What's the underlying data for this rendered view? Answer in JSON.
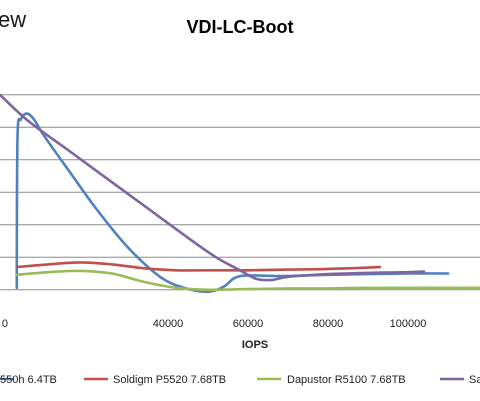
{
  "logo": {
    "fragment": "ew"
  },
  "chart_data": {
    "type": "line",
    "title": "VDI-LC-Boot",
    "xlabel": "IOPS",
    "ylabel": "",
    "xlim": [
      -2000,
      118000
    ],
    "ylim": [
      0,
      40
    ],
    "yticks": [
      2.5,
      7.5,
      12.5,
      17.5,
      22.5,
      27.5,
      32.5
    ],
    "grid": true,
    "legend_position": "bottom",
    "x_tick_labels": [
      {
        "value": 0,
        "label": "0"
      },
      {
        "value": 40000,
        "label": "40000"
      },
      {
        "value": 60000,
        "label": "60000"
      },
      {
        "value": 80000,
        "label": "80000"
      },
      {
        "value": 100000,
        "label": "100000"
      }
    ],
    "series": [
      {
        "name": "550h 6.4TB",
        "color": "#4f81bd",
        "points": [
          [
            2200,
            2.8
          ],
          [
            2200,
            7.0
          ],
          [
            2400,
            26.5
          ],
          [
            3200,
            28.7
          ],
          [
            4700,
            29.6
          ],
          [
            6500,
            28.7
          ],
          [
            9000,
            26.2
          ],
          [
            15000,
            21.0
          ],
          [
            22000,
            15.0
          ],
          [
            30000,
            9.0
          ],
          [
            38000,
            4.5
          ],
          [
            44000,
            2.8
          ],
          [
            50000,
            2.2
          ],
          [
            54000,
            3.0
          ],
          [
            58000,
            4.6
          ],
          [
            68000,
            4.6
          ],
          [
            80000,
            4.8
          ],
          [
            90000,
            4.9
          ],
          [
            100000,
            5.0
          ],
          [
            110000,
            5.0
          ]
        ]
      },
      {
        "name": "Soldigm P5520 7.68TB",
        "color": "#c0504d",
        "points": [
          [
            2200,
            6.0
          ],
          [
            10000,
            6.4
          ],
          [
            18000,
            6.7
          ],
          [
            26000,
            6.4
          ],
          [
            34000,
            5.8
          ],
          [
            42000,
            5.5
          ],
          [
            50000,
            5.5
          ],
          [
            60000,
            5.5
          ],
          [
            70000,
            5.6
          ],
          [
            80000,
            5.7
          ],
          [
            90000,
            5.9
          ],
          [
            93000,
            6.0
          ]
        ]
      },
      {
        "name": "Dapustor R5100 7.68TB",
        "color": "#9bbb59",
        "points": [
          [
            2200,
            4.8
          ],
          [
            10000,
            5.2
          ],
          [
            18000,
            5.4
          ],
          [
            26000,
            5.0
          ],
          [
            34000,
            3.7
          ],
          [
            42000,
            2.8
          ],
          [
            50000,
            2.5
          ],
          [
            60000,
            2.6
          ],
          [
            70000,
            2.7
          ],
          [
            80000,
            2.7
          ],
          [
            90000,
            2.8
          ],
          [
            100000,
            2.8
          ],
          [
            110000,
            2.8
          ],
          [
            118000,
            2.8
          ]
        ]
      },
      {
        "name": "Sa",
        "color": "#8064a2",
        "points": [
          [
            -2000,
            32.5
          ],
          [
            5000,
            28.5
          ],
          [
            15000,
            24.0
          ],
          [
            25000,
            19.5
          ],
          [
            35000,
            15.0
          ],
          [
            45000,
            10.5
          ],
          [
            52000,
            7.5
          ],
          [
            58000,
            5.5
          ],
          [
            62000,
            4.2
          ],
          [
            66000,
            4.0
          ],
          [
            70000,
            4.5
          ],
          [
            80000,
            4.9
          ],
          [
            90000,
            5.1
          ],
          [
            100000,
            5.2
          ],
          [
            104000,
            5.3
          ]
        ]
      }
    ]
  }
}
